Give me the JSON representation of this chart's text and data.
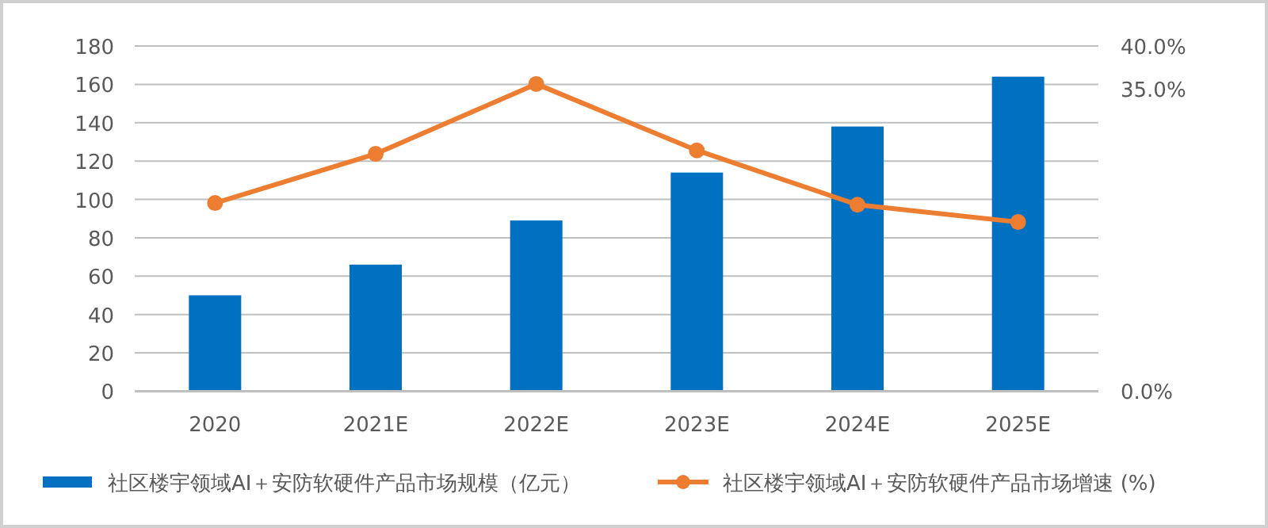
{
  "chart_data": {
    "type": "bar",
    "categories": [
      "2020",
      "2021E",
      "2022E",
      "2023E",
      "2024E",
      "2025E"
    ],
    "series": [
      {
        "name": "社区楼宇领域AI＋安防软硬件产品市场规模（亿元）",
        "color": "#0070c0",
        "values": [
          50,
          66,
          89,
          114,
          138,
          164
        ]
      },
      {
        "name": "社区楼宇领域AI＋安防软硬件产品市场增速 (%)",
        "type": "line",
        "axis": "y2",
        "color": "#ed7d31",
        "values": [
          21.8,
          27.5,
          35.6,
          27.9,
          21.6,
          19.6
        ]
      }
    ],
    "ylim": [
      0,
      180
    ],
    "yticks": [
      0,
      20,
      40,
      60,
      80,
      100,
      120,
      140,
      160,
      180
    ],
    "y2lim": [
      0,
      40
    ],
    "y2ticks": [
      {
        "value": 0,
        "label": "0.0%"
      },
      {
        "value": 35,
        "label": "35.0%"
      },
      {
        "value": 40,
        "label": "40.0%"
      }
    ],
    "grid": "y",
    "legend": "bottom",
    "marker": "circle"
  }
}
